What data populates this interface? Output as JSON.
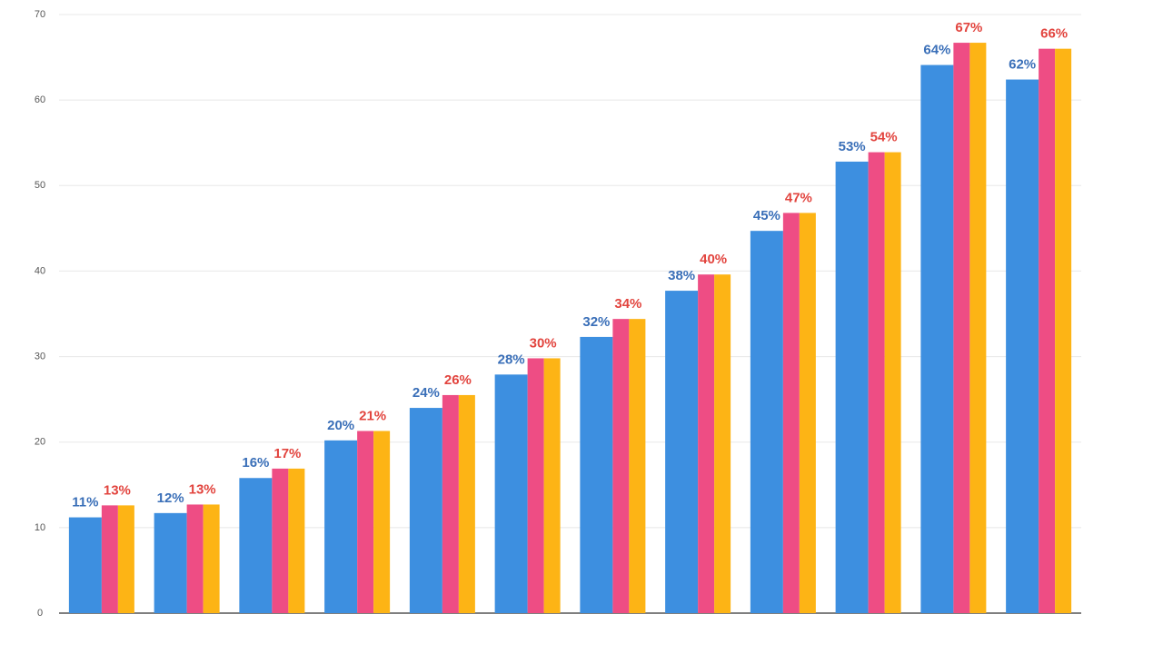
{
  "chart_data": {
    "type": "bar",
    "categories": [
      null,
      null,
      null,
      null,
      null,
      null,
      null,
      null,
      null,
      null,
      null,
      null
    ],
    "series": [
      {
        "color": "#3d8fe0",
        "values": [
          11.2,
          11.7,
          15.8,
          20.2,
          24.0,
          27.9,
          32.3,
          37.7,
          44.7,
          52.8,
          64.1,
          62.4
        ],
        "value_labels": [
          "11%",
          "12%",
          "16%",
          "20%",
          "24%",
          "28%",
          "32%",
          "38%",
          "45%",
          "53%",
          "64%",
          "62%"
        ]
      },
      {
        "color": "#ee4d84",
        "values": [
          12.6,
          12.7,
          16.9,
          21.3,
          25.5,
          29.8,
          34.4,
          39.6,
          46.8,
          53.9,
          66.7,
          66.0
        ],
        "value_labels": [
          "13%",
          "13%",
          "17%",
          "21%",
          "26%",
          "30%",
          "34%",
          "40%",
          "47%",
          "54%",
          "67%",
          "66%"
        ]
      },
      {
        "color": "#fdb415",
        "values": [
          12.6,
          12.7,
          16.9,
          21.3,
          25.5,
          29.8,
          34.4,
          39.6,
          46.8,
          53.9,
          66.7,
          66.0
        ]
      }
    ],
    "ylim": [
      0,
      70
    ],
    "yticks": [
      0,
      10,
      20,
      30,
      40,
      50,
      60,
      70
    ],
    "grid": true
  }
}
